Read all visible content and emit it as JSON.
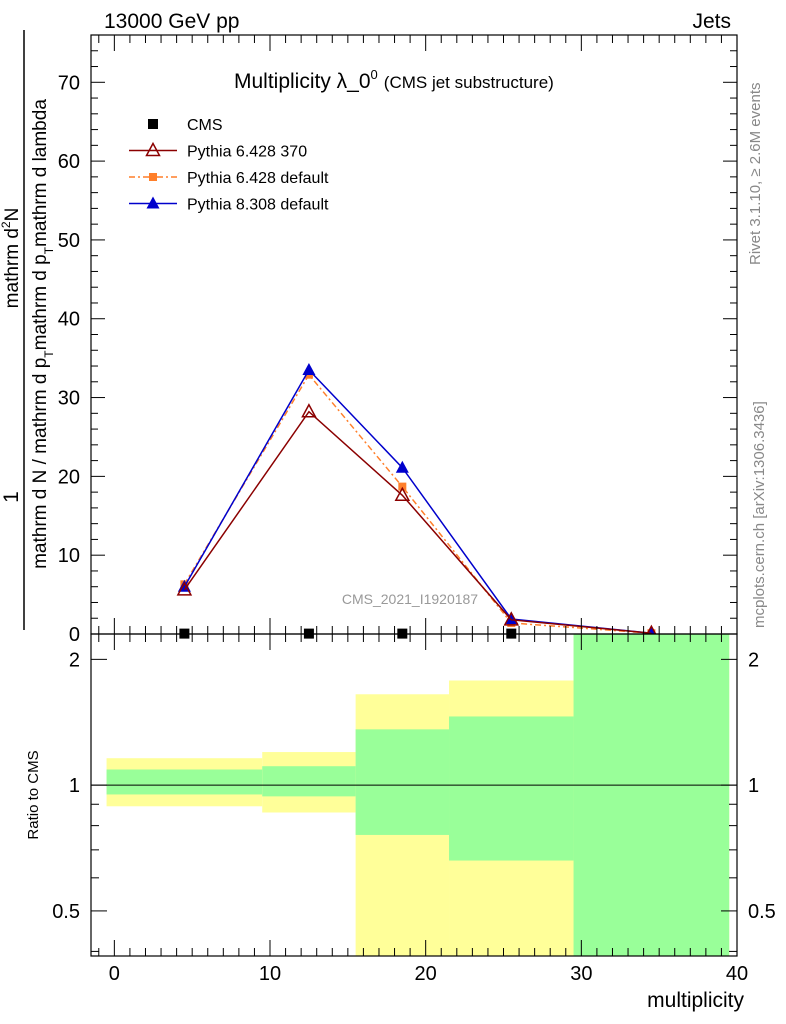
{
  "header": {
    "left": "13000 GeV pp",
    "right": "Jets"
  },
  "side": {
    "rivet": "Rivet 3.1.10, ≥ 2.6M events",
    "mcplots": "mcplots.cern.ch [arXiv:1306.3436]"
  },
  "chart_data": [
    {
      "type": "line",
      "title_main": "Multiplicity λ_0",
      "title_sup": "0",
      "title_sub": "(CMS jet substructure)",
      "ylabel_top": "1",
      "ylabel_frac_num": "mathrm d",
      "ylabel_frac_num_sup": "2",
      "ylabel_frac_num_end": "N",
      "ylabel_frac_den": "mathrm d N / mathrm d p",
      "ylabel_frac_den_sub": "T",
      "ylabel_frac_den_end": "mathrm d p",
      "ylabel_frac_den_sub2": "T",
      "ylabel_frac_den_end2": "mathrm d lambda",
      "watermark": "CMS_2021_I1920187",
      "xlim": [
        -1.5,
        40
      ],
      "ylim": [
        0,
        76
      ],
      "yticks": [
        10,
        20,
        30,
        40,
        50,
        60,
        70
      ],
      "y_zero_label": "0",
      "legend": [
        {
          "name": "CMS",
          "color": "#000000",
          "marker": "square"
        },
        {
          "name": "Pythia 6.428 370",
          "color": "#8b0000",
          "marker": "triangle-open"
        },
        {
          "name": "Pythia 6.428 default",
          "color": "#ff7f2a",
          "marker": "square-small",
          "dash": "6,3,2,3"
        },
        {
          "name": "Pythia 8.308 default",
          "color": "#0000cc",
          "marker": "triangle"
        }
      ],
      "series": [
        {
          "name": "CMS",
          "x": [
            4.5,
            12.5,
            18.5,
            25.5
          ],
          "y": [
            0.05,
            0.05,
            0.05,
            0.05
          ]
        },
        {
          "name": "Pythia 6.428 370",
          "x": [
            4.5,
            12.5,
            18.5,
            25.5,
            34.5
          ],
          "y": [
            5.6,
            28.2,
            17.6,
            1.8,
            0.1
          ]
        },
        {
          "name": "Pythia 6.428 default",
          "x": [
            4.5,
            12.5,
            18.5,
            25.5,
            34.5
          ],
          "y": [
            6.3,
            32.9,
            18.7,
            1.4,
            0.1
          ]
        },
        {
          "name": "Pythia 8.308 default",
          "x": [
            4.5,
            12.5,
            18.5,
            25.5,
            34.5
          ],
          "y": [
            6.0,
            33.5,
            21.1,
            1.9,
            0.1
          ]
        }
      ]
    },
    {
      "type": "area",
      "ylabel": "Ratio to CMS",
      "xlabel": "multiplicity",
      "xlim": [
        -1.5,
        40
      ],
      "ylim": [
        0.39,
        2.3
      ],
      "scale": "log",
      "yticks": [
        0.5,
        1,
        2
      ],
      "ytick_labels": [
        "0.5",
        "1",
        "2"
      ],
      "xticks": [
        0,
        10,
        20,
        30,
        40
      ],
      "xtick_labels": [
        "0",
        "10",
        "20",
        "30",
        "40"
      ],
      "band_colors": {
        "outer": "#ffff99",
        "inner": "#99ff99"
      },
      "bins": [
        {
          "x0": -0.5,
          "x1": 9.5,
          "yellow": [
            0.89,
            1.16
          ],
          "green": [
            0.95,
            1.09
          ]
        },
        {
          "x0": 9.5,
          "x1": 15.5,
          "yellow": [
            0.86,
            1.2
          ],
          "green": [
            0.94,
            1.11
          ]
        },
        {
          "x0": 15.5,
          "x1": 21.5,
          "yellow": [
            0.38,
            1.65
          ],
          "green": [
            0.76,
            1.36
          ]
        },
        {
          "x0": 21.5,
          "x1": 29.5,
          "yellow": [
            0.38,
            1.78
          ],
          "green": [
            0.66,
            1.46
          ]
        },
        {
          "x0": 29.5,
          "x1": 39.5,
          "yellow": [
            0.39,
            2.3
          ],
          "green": [
            0.39,
            2.3
          ]
        }
      ]
    }
  ]
}
